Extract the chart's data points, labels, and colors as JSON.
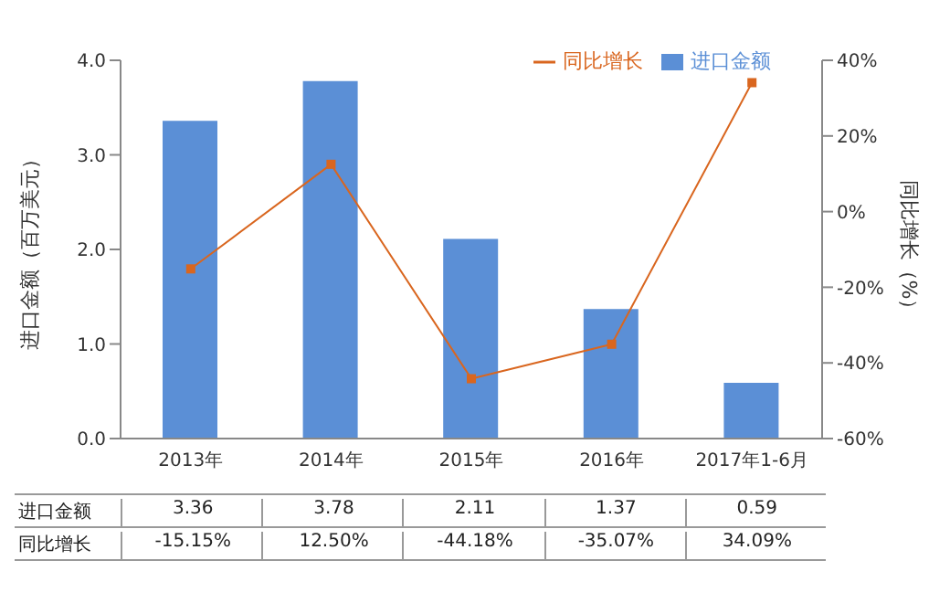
{
  "chart_data": {
    "type": "bar",
    "categories": [
      "2013年",
      "2014年",
      "2015年",
      "2016年",
      "2017年1-6月"
    ],
    "ylabel": "进口金额（百万美元）",
    "y2label": "同比增长（%）",
    "ylim": [
      0,
      4
    ],
    "yticks": [
      {
        "value": 0,
        "label": "0.0"
      },
      {
        "value": 1,
        "label": "1.0"
      },
      {
        "value": 2,
        "label": "2.0"
      },
      {
        "value": 3,
        "label": "3.0"
      },
      {
        "value": 4,
        "label": "4.0"
      }
    ],
    "y2lim": [
      -60,
      40
    ],
    "y2ticks": [
      {
        "value": -60,
        "label": "-60%"
      },
      {
        "value": -40,
        "label": "-40%"
      },
      {
        "value": -20,
        "label": "-20%"
      },
      {
        "value": 0,
        "label": "0%"
      },
      {
        "value": 20,
        "label": "20%"
      },
      {
        "value": 40,
        "label": "40%"
      }
    ],
    "series": [
      {
        "name": "进口金额",
        "color": "#5b8fd6",
        "values": [
          3.36,
          3.78,
          2.11,
          1.37,
          0.59
        ],
        "value_labels": [
          "3.36",
          "3.78",
          "2.11",
          "1.37",
          "0.59"
        ]
      },
      {
        "name": "同比增长",
        "type": "line",
        "axis": "y2",
        "color": "#d9661f",
        "marker": "square",
        "values": [
          -15.15,
          12.5,
          -44.18,
          -35.07,
          34.09
        ],
        "value_labels": [
          "-15.15%",
          "12.50%",
          "-44.18%",
          "-35.07%",
          "34.09%"
        ]
      }
    ],
    "legend": "top right",
    "grid": false
  }
}
